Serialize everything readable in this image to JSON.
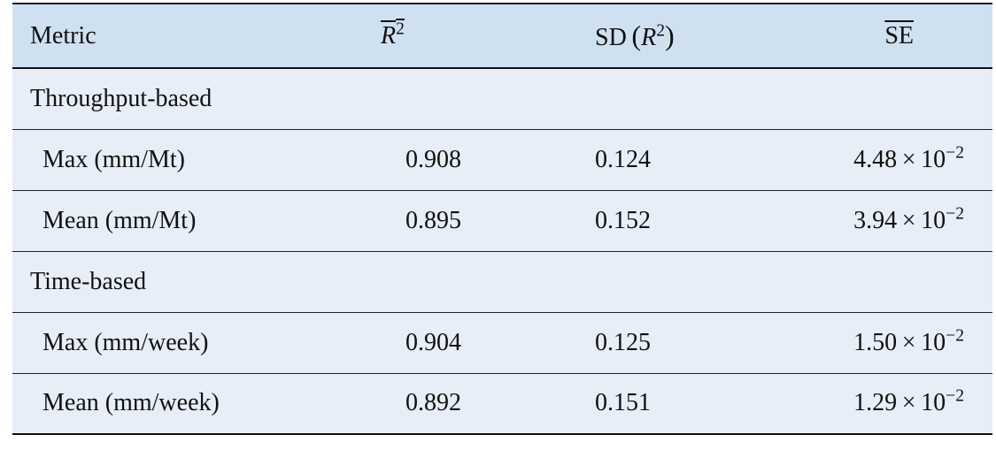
{
  "table": {
    "headers": {
      "metric": "Metric",
      "r2_symbol": "R",
      "r2_exp": "2",
      "sd_prefix": "SD",
      "sd_open": "(",
      "sd_symbol": "R",
      "sd_exp": "2",
      "sd_close": ")",
      "se": "SE"
    },
    "groups": [
      {
        "label": "Throughput-based",
        "rows": [
          {
            "metric": "Max (mm/Mt)",
            "r2": "0.908",
            "sd": "0.124",
            "se_mantissa": "4.48",
            "se_times": "×",
            "se_base": "10",
            "se_exp": "−2"
          },
          {
            "metric": "Mean (mm/Mt)",
            "r2": "0.895",
            "sd": "0.152",
            "se_mantissa": "3.94",
            "se_times": "×",
            "se_base": "10",
            "se_exp": "−2"
          }
        ]
      },
      {
        "label": "Time-based",
        "rows": [
          {
            "metric": "Max (mm/week)",
            "r2": "0.904",
            "sd": "0.125",
            "se_mantissa": "1.50",
            "se_times": "×",
            "se_base": "10",
            "se_exp": "−2"
          },
          {
            "metric": "Mean (mm/week)",
            "r2": "0.892",
            "sd": "0.151",
            "se_mantissa": "1.29",
            "se_times": "×",
            "se_base": "10",
            "se_exp": "−2"
          }
        ]
      }
    ]
  }
}
